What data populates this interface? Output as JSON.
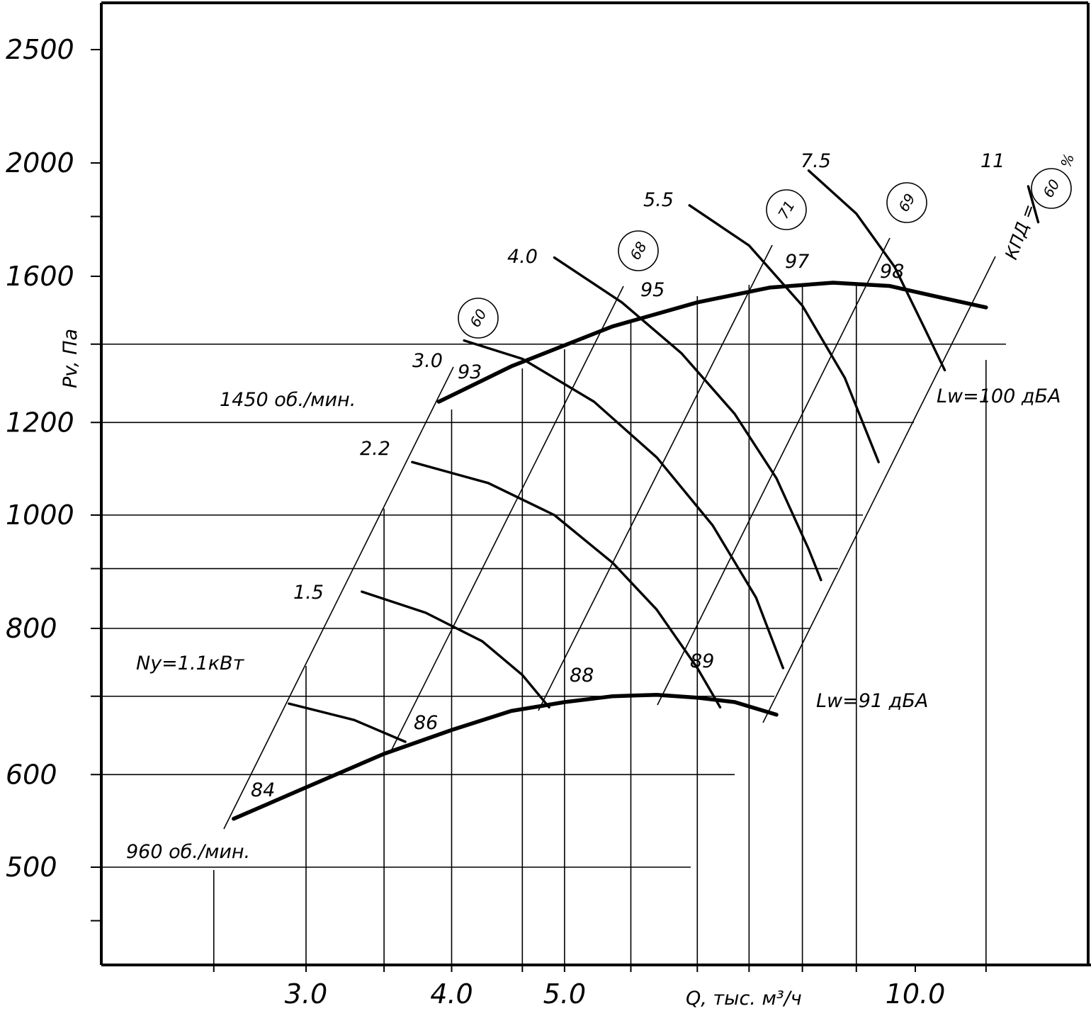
{
  "chart_data": {
    "type": "line",
    "title": "",
    "xlabel": "Q, тыс. м³/ч",
    "ylabel": "Pv, Па",
    "x_scale": "log",
    "y_scale": "log",
    "xlim": [
      2.3,
      13.8
    ],
    "ylim": [
      420,
      2800
    ],
    "x_ticks": [
      "3.0",
      "4.0",
      "5.0",
      "10.0"
    ],
    "y_ticks": [
      "500",
      "600",
      "800",
      "1000",
      "1200",
      "1600",
      "2000",
      "2500"
    ],
    "grid": true,
    "speed_curves": [
      {
        "name": "1450 об./мин.",
        "label": "1450 об./мин.",
        "points": [
          [
            3.9,
            1250
          ],
          [
            4.5,
            1340
          ],
          [
            5.5,
            1450
          ],
          [
            6.5,
            1520
          ],
          [
            7.5,
            1565
          ],
          [
            8.5,
            1580
          ],
          [
            9.5,
            1570
          ],
          [
            10.5,
            1535
          ],
          [
            11.5,
            1505
          ]
        ]
      },
      {
        "name": "960 об./мин.",
        "label": "960 об./мин.",
        "points": [
          [
            2.6,
            550
          ],
          [
            3.0,
            585
          ],
          [
            3.5,
            625
          ],
          [
            4.0,
            655
          ],
          [
            4.5,
            680
          ],
          [
            5.0,
            692
          ],
          [
            5.5,
            700
          ],
          [
            6.0,
            702
          ],
          [
            6.5,
            698
          ],
          [
            7.0,
            692
          ],
          [
            7.6,
            675
          ]
        ]
      }
    ],
    "power_curves": [
      {
        "label": "1.1",
        "points": [
          [
            2.9,
            690
          ],
          [
            3.3,
            668
          ],
          [
            3.65,
            640
          ]
        ]
      },
      {
        "label": "1.5",
        "points": [
          [
            3.35,
            860
          ],
          [
            3.8,
            825
          ],
          [
            4.25,
            780
          ],
          [
            4.6,
            730
          ],
          [
            4.85,
            685
          ]
        ]
      },
      {
        "label": "2.2",
        "points": [
          [
            3.7,
            1110
          ],
          [
            4.3,
            1065
          ],
          [
            4.9,
            1000
          ],
          [
            5.5,
            910
          ],
          [
            6.0,
            830
          ],
          [
            6.5,
            740
          ],
          [
            6.8,
            685
          ]
        ]
      },
      {
        "label": "3.0",
        "points": [
          [
            4.1,
            1410
          ],
          [
            4.6,
            1360
          ],
          [
            5.3,
            1250
          ],
          [
            6.0,
            1120
          ],
          [
            6.7,
            980
          ],
          [
            7.3,
            850
          ],
          [
            7.7,
            740
          ]
        ]
      },
      {
        "label": "4.0",
        "points": [
          [
            4.9,
            1660
          ],
          [
            5.6,
            1520
          ],
          [
            6.3,
            1375
          ],
          [
            7.0,
            1220
          ],
          [
            7.6,
            1075
          ],
          [
            8.1,
            935
          ],
          [
            8.3,
            880
          ]
        ]
      },
      {
        "label": "5.5",
        "points": [
          [
            6.4,
            1840
          ],
          [
            7.2,
            1700
          ],
          [
            8.0,
            1510
          ],
          [
            8.7,
            1310
          ],
          [
            9.3,
            1110
          ]
        ]
      },
      {
        "label": "7.5",
        "points": [
          [
            8.1,
            1970
          ],
          [
            8.9,
            1810
          ],
          [
            9.6,
            1630
          ],
          [
            10.2,
            1440
          ],
          [
            10.6,
            1330
          ]
        ]
      },
      {
        "label": "11",
        "points": [
          [
            12.5,
            1910
          ],
          [
            12.75,
            1780
          ]
        ]
      }
    ],
    "noise_lines": [
      {
        "label": "84"
      },
      {
        "label": "86"
      },
      {
        "label": "88"
      },
      {
        "label": "89"
      },
      {
        "label": "93"
      },
      {
        "label": "95"
      },
      {
        "label": "97"
      },
      {
        "label": "98"
      }
    ],
    "noise_extremes": {
      "min": "Lw=91 дБА",
      "max": "Lw=100 дБА"
    },
    "efficiency_labels": [
      "60",
      "68",
      "71",
      "69",
      "60"
    ],
    "efficiency_prefix": "КПД =",
    "efficiency_unit": "%",
    "power_prefix": "Nу=1.1кВт"
  }
}
